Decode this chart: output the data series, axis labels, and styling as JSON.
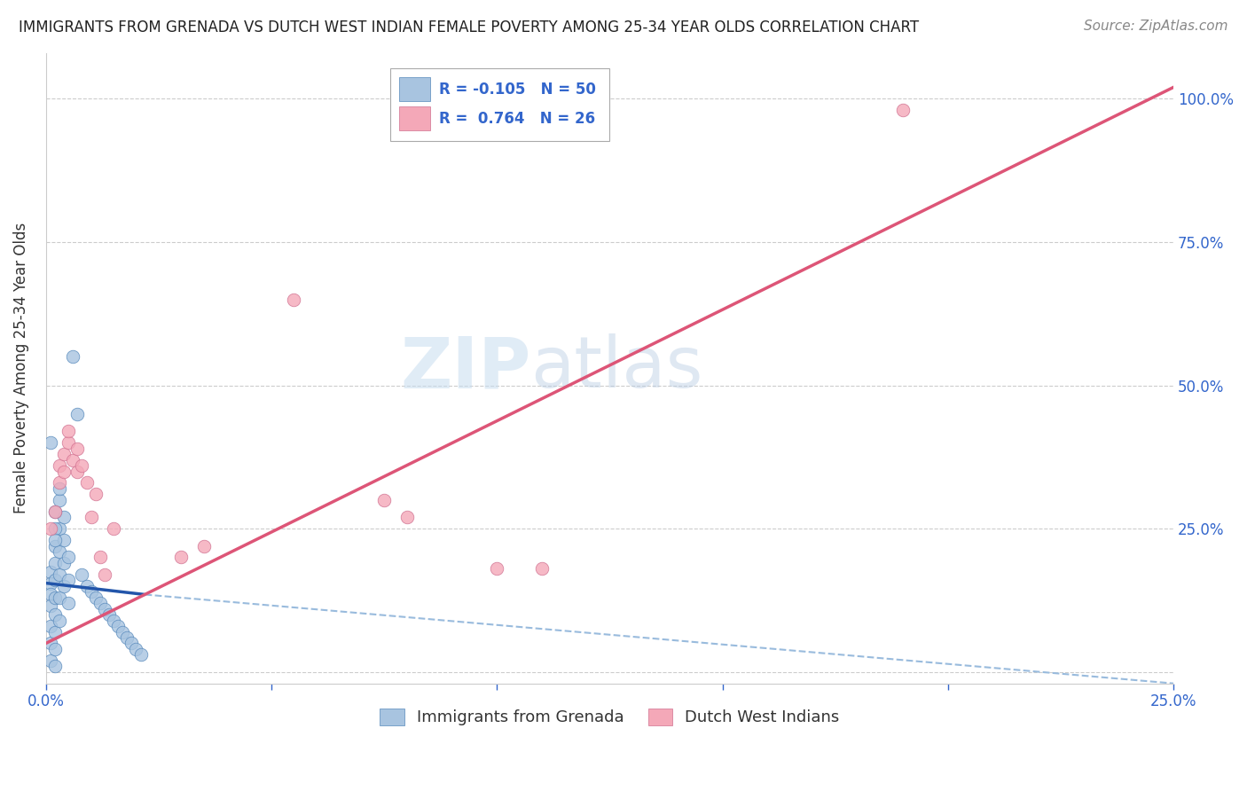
{
  "title": "IMMIGRANTS FROM GRENADA VS DUTCH WEST INDIAN FEMALE POVERTY AMONG 25-34 YEAR OLDS CORRELATION CHART",
  "source": "Source: ZipAtlas.com",
  "ylabel": "Female Poverty Among 25-34 Year Olds",
  "xlim": [
    0.0,
    0.25
  ],
  "ylim": [
    -0.02,
    1.08
  ],
  "blue_color": "#a8c4e0",
  "pink_color": "#f4a8b8",
  "blue_edge_color": "#5588bb",
  "pink_edge_color": "#d07090",
  "blue_line_color": "#2255aa",
  "pink_line_color": "#dd5577",
  "dashed_line_color": "#99bbdd",
  "watermark_zip": "ZIP",
  "watermark_atlas": "atlas",
  "blue_scatter_x": [
    0.001,
    0.001,
    0.001,
    0.001,
    0.001,
    0.001,
    0.001,
    0.002,
    0.002,
    0.002,
    0.002,
    0.002,
    0.002,
    0.002,
    0.002,
    0.003,
    0.003,
    0.003,
    0.003,
    0.003,
    0.004,
    0.004,
    0.004,
    0.004,
    0.005,
    0.005,
    0.005,
    0.006,
    0.007,
    0.008,
    0.009,
    0.01,
    0.011,
    0.012,
    0.013,
    0.014,
    0.015,
    0.016,
    0.017,
    0.018,
    0.019,
    0.02,
    0.021,
    0.001,
    0.002,
    0.002,
    0.002,
    0.003,
    0.003
  ],
  "blue_scatter_y": [
    0.175,
    0.155,
    0.135,
    0.115,
    0.08,
    0.05,
    0.02,
    0.22,
    0.19,
    0.16,
    0.13,
    0.1,
    0.07,
    0.04,
    0.01,
    0.25,
    0.21,
    0.17,
    0.13,
    0.09,
    0.27,
    0.23,
    0.19,
    0.15,
    0.2,
    0.16,
    0.12,
    0.55,
    0.45,
    0.17,
    0.15,
    0.14,
    0.13,
    0.12,
    0.11,
    0.1,
    0.09,
    0.08,
    0.07,
    0.06,
    0.05,
    0.04,
    0.03,
    0.4,
    0.28,
    0.25,
    0.23,
    0.3,
    0.32
  ],
  "pink_scatter_x": [
    0.001,
    0.002,
    0.003,
    0.003,
    0.004,
    0.004,
    0.005,
    0.005,
    0.006,
    0.007,
    0.007,
    0.008,
    0.009,
    0.01,
    0.011,
    0.012,
    0.013,
    0.015,
    0.03,
    0.035,
    0.055,
    0.075,
    0.08,
    0.1,
    0.11,
    0.19
  ],
  "pink_scatter_y": [
    0.25,
    0.28,
    0.36,
    0.33,
    0.38,
    0.35,
    0.4,
    0.42,
    0.37,
    0.39,
    0.35,
    0.36,
    0.33,
    0.27,
    0.31,
    0.2,
    0.17,
    0.25,
    0.2,
    0.22,
    0.65,
    0.3,
    0.27,
    0.18,
    0.18,
    0.98
  ],
  "blue_trend_x": [
    0.0,
    0.022
  ],
  "blue_trend_y": [
    0.155,
    0.135
  ],
  "dashed_trend_x": [
    0.022,
    0.25
  ],
  "dashed_trend_y": [
    0.135,
    -0.02
  ],
  "pink_trend_x": [
    0.0,
    0.25
  ],
  "pink_trend_y": [
    0.05,
    1.02
  ]
}
